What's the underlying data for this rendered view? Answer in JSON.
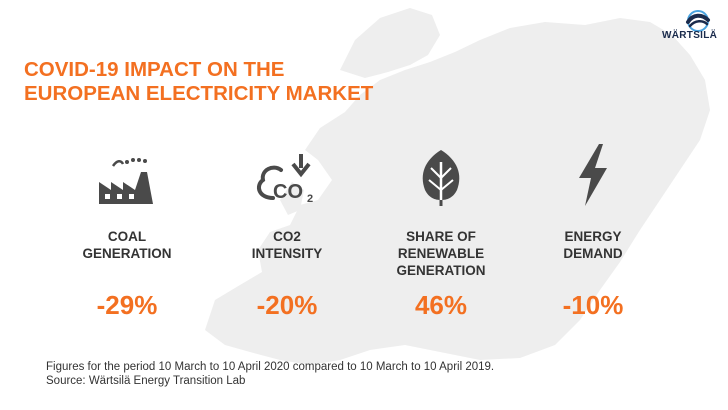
{
  "brand": {
    "name": "WÄRTSILÄ",
    "logo_icon": "wartsila-wave-icon",
    "colors": {
      "accent": "#f37021",
      "text": "#333333",
      "map": "#eeeeee",
      "logo_blue": "#1a2b4c",
      "logo_light": "#4aa3df"
    }
  },
  "title": {
    "line1": "COVID-19 IMPACT ON THE",
    "line2": "EUROPEAN ELECTRICITY MARKET"
  },
  "metrics": [
    {
      "icon": "factory-icon",
      "label_lines": [
        "COAL",
        "GENERATION"
      ],
      "value": "-29%"
    },
    {
      "icon": "cloud-co2-icon",
      "label_lines": [
        "CO2",
        "INTENSITY"
      ],
      "value": "-20%"
    },
    {
      "icon": "leaf-icon",
      "label_lines": [
        "SHARE OF",
        "RENEWABLE",
        "GENERATION"
      ],
      "value": "46%"
    },
    {
      "icon": "lightning-bolt-icon",
      "label_lines": [
        "ENERGY",
        "DEMAND"
      ],
      "value": "-10%"
    }
  ],
  "co2_icon_text": {
    "main": "CO",
    "sub": "2"
  },
  "footnote": {
    "line1": "Figures for the period 10 March to 10 April 2020 compared to 10 March to 10 April 2019.",
    "line2": "Source: Wärtsilä Energy Transition Lab"
  }
}
